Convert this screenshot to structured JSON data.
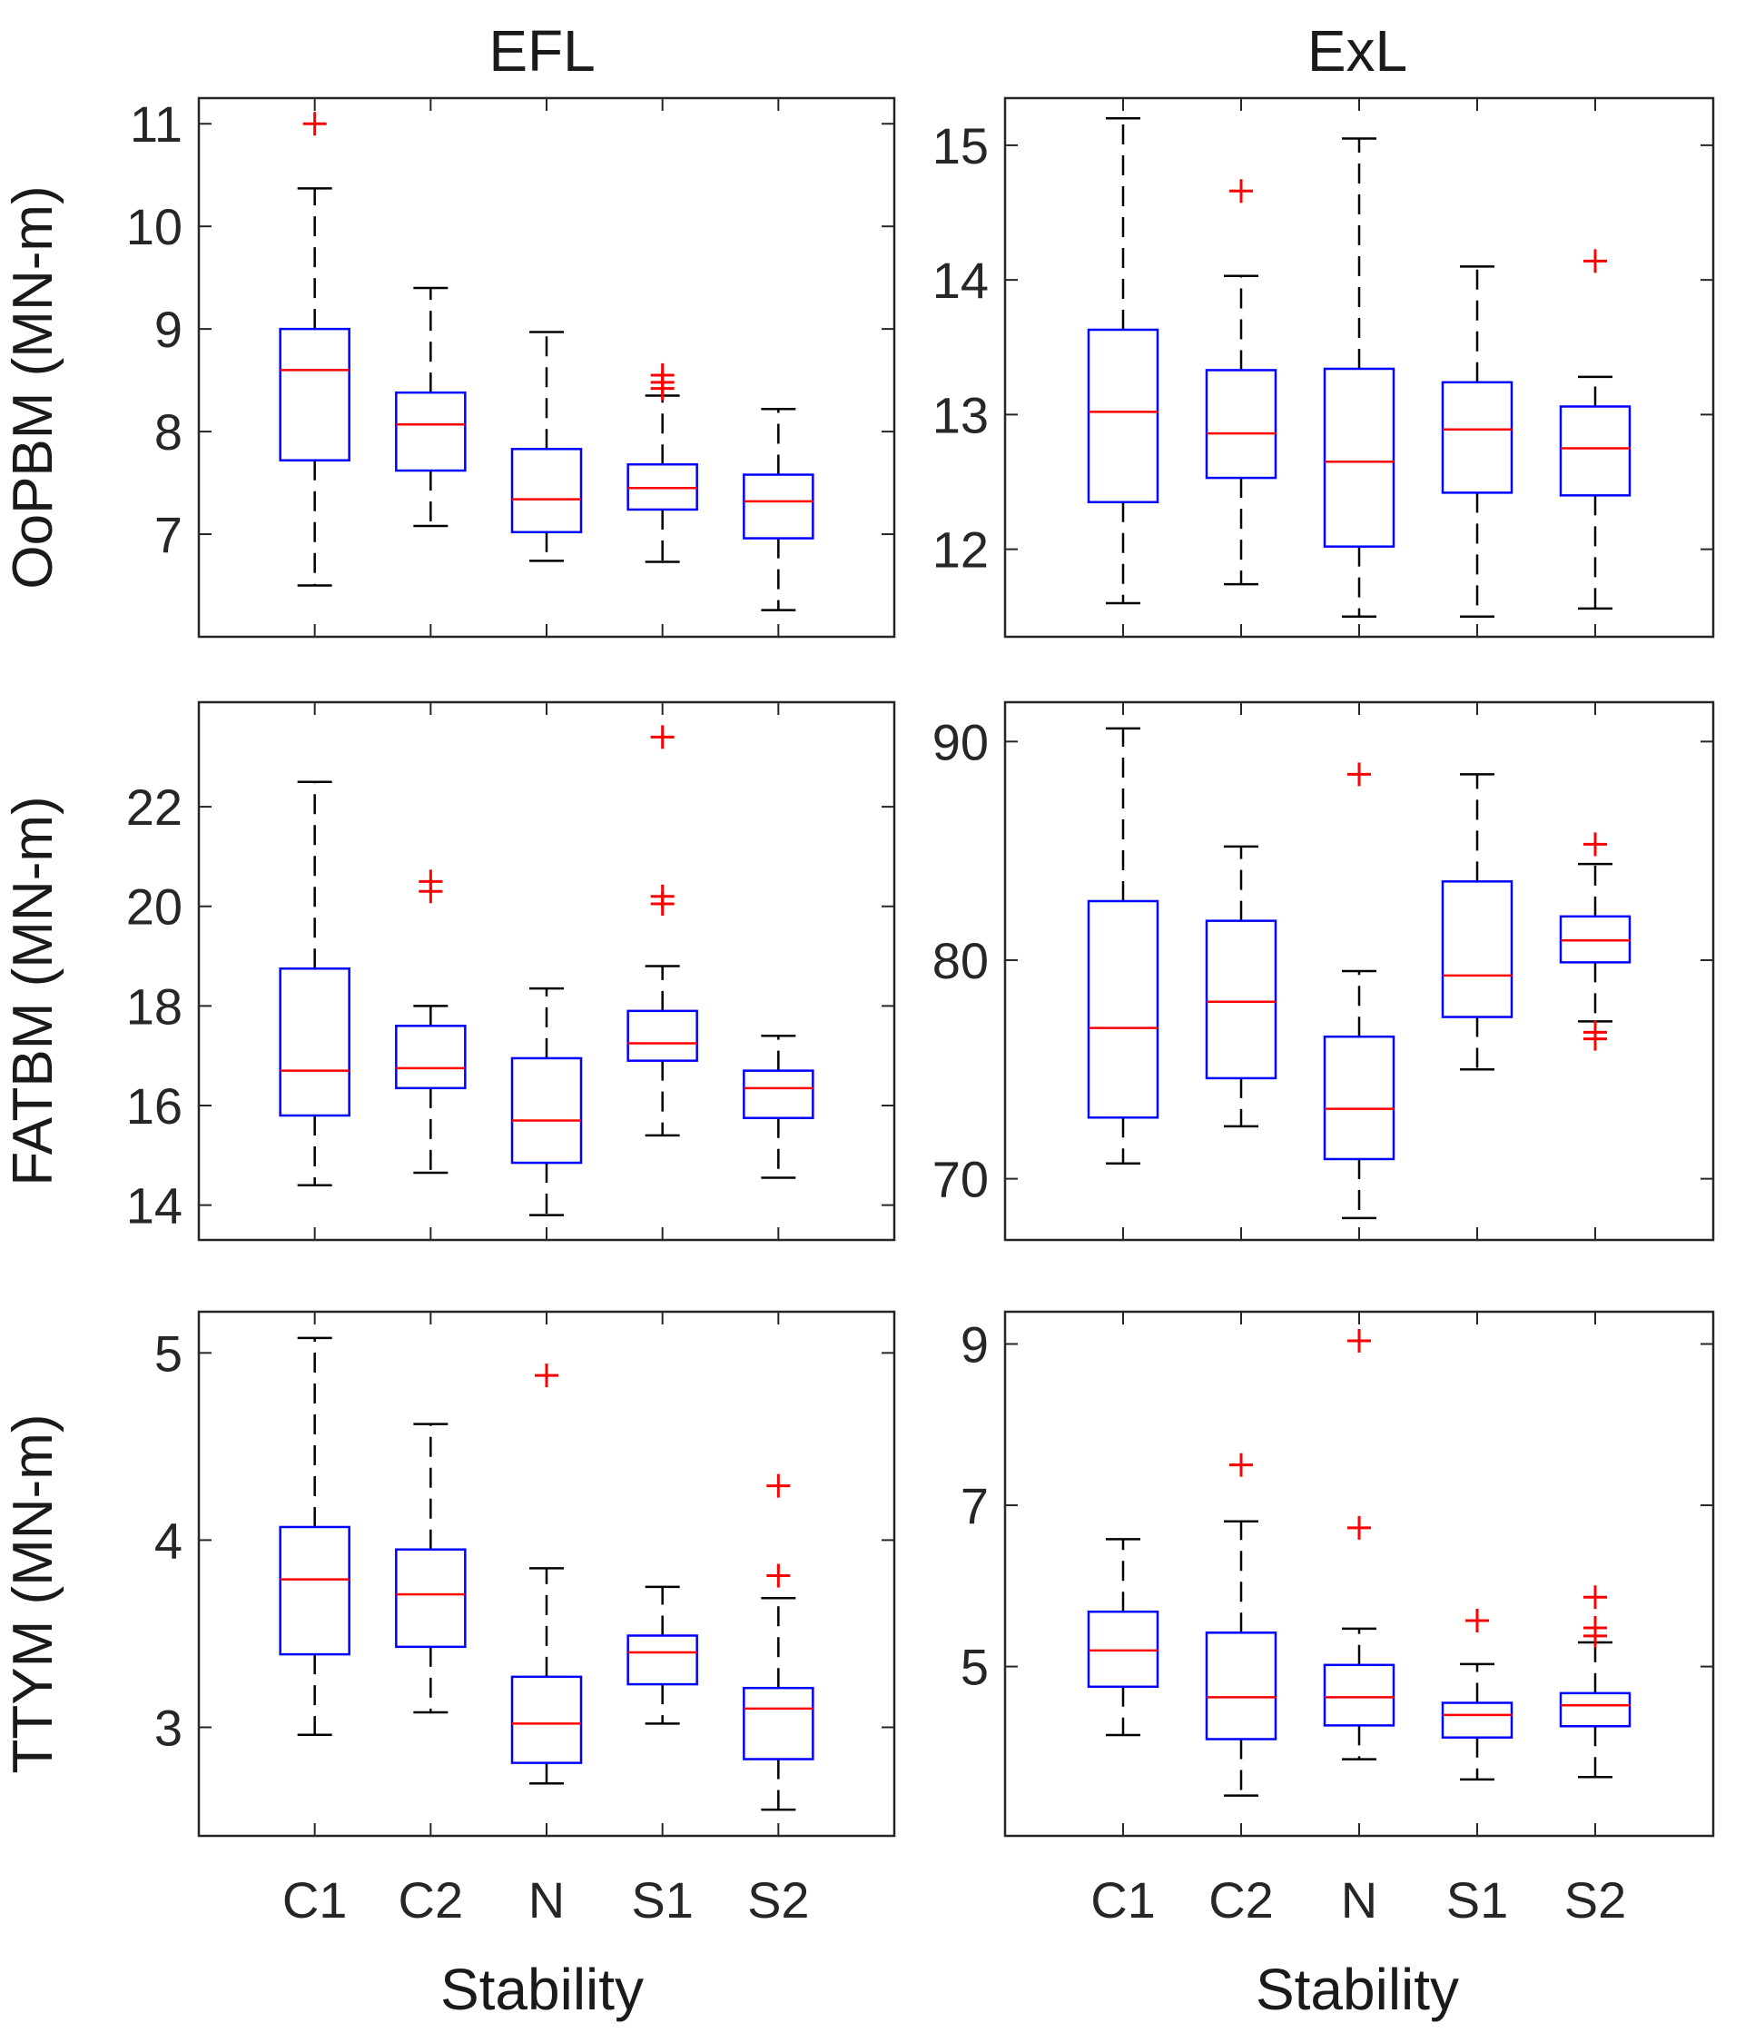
{
  "columns": [
    "EFL",
    "ExL"
  ],
  "x_label": "Stability",
  "categories": [
    "C1",
    "C2",
    "N",
    "S1",
    "S2"
  ],
  "chart_data": [
    {
      "type": "box",
      "row": 0,
      "col": 0,
      "column_title": "EFL",
      "ylabel": "OoPBM (MN-m)",
      "ylim": [
        6.0,
        11.25
      ],
      "yticks": [
        7,
        8,
        9,
        10,
        11
      ],
      "boxes": [
        {
          "category": "C1",
          "whislo": 6.5,
          "q1": 7.72,
          "med": 8.6,
          "q3": 9.0,
          "whishi": 10.37,
          "fliers": [
            11.0
          ]
        },
        {
          "category": "C2",
          "whislo": 7.08,
          "q1": 7.62,
          "med": 8.07,
          "q3": 8.38,
          "whishi": 9.4,
          "fliers": []
        },
        {
          "category": "N",
          "whislo": 6.74,
          "q1": 7.02,
          "med": 7.34,
          "q3": 7.83,
          "whishi": 8.97,
          "fliers": []
        },
        {
          "category": "S1",
          "whislo": 6.73,
          "q1": 7.24,
          "med": 7.45,
          "q3": 7.68,
          "whishi": 8.35,
          "fliers": [
            8.42,
            8.48,
            8.55
          ]
        },
        {
          "category": "S2",
          "whislo": 6.26,
          "q1": 6.96,
          "med": 7.32,
          "q3": 7.58,
          "whishi": 8.22,
          "fliers": []
        }
      ]
    },
    {
      "type": "box",
      "row": 0,
      "col": 1,
      "column_title": "ExL",
      "ylabel": "",
      "ylim": [
        11.35,
        15.35
      ],
      "yticks": [
        12,
        13,
        14,
        15
      ],
      "boxes": [
        {
          "category": "C1",
          "whislo": 11.6,
          "q1": 12.35,
          "med": 13.02,
          "q3": 13.63,
          "whishi": 15.2,
          "fliers": []
        },
        {
          "category": "C2",
          "whislo": 11.74,
          "q1": 12.53,
          "med": 12.86,
          "q3": 13.33,
          "whishi": 14.03,
          "fliers": [
            14.66
          ]
        },
        {
          "category": "N",
          "whislo": 11.5,
          "q1": 12.02,
          "med": 12.65,
          "q3": 13.34,
          "whishi": 15.05,
          "fliers": []
        },
        {
          "category": "S1",
          "whislo": 11.5,
          "q1": 12.42,
          "med": 12.89,
          "q3": 13.24,
          "whishi": 14.1,
          "fliers": []
        },
        {
          "category": "S2",
          "whislo": 11.56,
          "q1": 12.4,
          "med": 12.75,
          "q3": 13.06,
          "whishi": 13.28,
          "fliers": [
            14.14
          ]
        }
      ]
    },
    {
      "type": "box",
      "row": 1,
      "col": 0,
      "column_title": "EFL",
      "ylabel": "FATBM (MN-m)",
      "ylim": [
        13.3,
        24.1
      ],
      "yticks": [
        14,
        16,
        18,
        20,
        22
      ],
      "boxes": [
        {
          "category": "C1",
          "whislo": 14.4,
          "q1": 15.8,
          "med": 16.7,
          "q3": 18.75,
          "whishi": 22.5,
          "fliers": []
        },
        {
          "category": "C2",
          "whislo": 14.65,
          "q1": 16.35,
          "med": 16.75,
          "q3": 17.6,
          "whishi": 18.0,
          "fliers": [
            20.3,
            20.5
          ]
        },
        {
          "category": "N",
          "whislo": 13.8,
          "q1": 14.85,
          "med": 15.7,
          "q3": 16.95,
          "whishi": 18.35,
          "fliers": []
        },
        {
          "category": "S1",
          "whislo": 15.4,
          "q1": 16.9,
          "med": 17.25,
          "q3": 17.9,
          "whishi": 18.8,
          "fliers": [
            20.05,
            20.2,
            23.4
          ]
        },
        {
          "category": "S2",
          "whislo": 14.55,
          "q1": 15.75,
          "med": 16.35,
          "q3": 16.7,
          "whishi": 17.4,
          "fliers": []
        }
      ]
    },
    {
      "type": "box",
      "row": 1,
      "col": 1,
      "column_title": "ExL",
      "ylabel": "",
      "ylim": [
        67.2,
        91.8
      ],
      "yticks": [
        70,
        80,
        90
      ],
      "boxes": [
        {
          "category": "C1",
          "whislo": 70.7,
          "q1": 72.8,
          "med": 76.9,
          "q3": 82.7,
          "whishi": 90.6,
          "fliers": []
        },
        {
          "category": "C2",
          "whislo": 72.4,
          "q1": 74.6,
          "med": 78.1,
          "q3": 81.8,
          "whishi": 85.2,
          "fliers": []
        },
        {
          "category": "N",
          "whislo": 68.2,
          "q1": 70.9,
          "med": 73.2,
          "q3": 76.5,
          "whishi": 79.5,
          "fliers": [
            88.5
          ]
        },
        {
          "category": "S1",
          "whislo": 75.0,
          "q1": 77.4,
          "med": 79.3,
          "q3": 83.6,
          "whishi": 88.5,
          "fliers": []
        },
        {
          "category": "S2",
          "whislo": 77.2,
          "q1": 79.9,
          "med": 80.9,
          "q3": 82.0,
          "whishi": 84.4,
          "fliers": [
            85.3,
            76.7,
            76.4
          ]
        }
      ]
    },
    {
      "type": "box",
      "row": 2,
      "col": 0,
      "column_title": "EFL",
      "ylabel": "TTYM (MN-m)",
      "ylim": [
        2.42,
        5.22
      ],
      "yticks": [
        3,
        4,
        5
      ],
      "boxes": [
        {
          "category": "C1",
          "whislo": 2.96,
          "q1": 3.39,
          "med": 3.79,
          "q3": 4.07,
          "whishi": 5.08,
          "fliers": []
        },
        {
          "category": "C2",
          "whislo": 3.08,
          "q1": 3.43,
          "med": 3.71,
          "q3": 3.95,
          "whishi": 4.62,
          "fliers": []
        },
        {
          "category": "N",
          "whislo": 2.7,
          "q1": 2.81,
          "med": 3.02,
          "q3": 3.27,
          "whishi": 3.85,
          "fliers": [
            4.88
          ]
        },
        {
          "category": "S1",
          "whislo": 3.02,
          "q1": 3.23,
          "med": 3.4,
          "q3": 3.49,
          "whishi": 3.75,
          "fliers": []
        },
        {
          "category": "S2",
          "whislo": 2.56,
          "q1": 2.83,
          "med": 3.1,
          "q3": 3.21,
          "whishi": 3.69,
          "fliers": [
            3.81,
            4.29
          ]
        }
      ]
    },
    {
      "type": "box",
      "row": 2,
      "col": 1,
      "column_title": "ExL",
      "ylabel": "",
      "ylim": [
        2.9,
        9.4
      ],
      "yticks": [
        5,
        7,
        9
      ],
      "boxes": [
        {
          "category": "C1",
          "whislo": 4.15,
          "q1": 4.75,
          "med": 5.2,
          "q3": 5.68,
          "whishi": 6.58,
          "fliers": []
        },
        {
          "category": "C2",
          "whislo": 3.4,
          "q1": 4.1,
          "med": 4.62,
          "q3": 5.42,
          "whishi": 6.8,
          "fliers": [
            7.5
          ]
        },
        {
          "category": "N",
          "whislo": 3.85,
          "q1": 4.27,
          "med": 4.62,
          "q3": 5.02,
          "whishi": 5.47,
          "fliers": [
            6.72,
            9.04
          ]
        },
        {
          "category": "S1",
          "whislo": 3.6,
          "q1": 4.12,
          "med": 4.4,
          "q3": 4.55,
          "whishi": 5.03,
          "fliers": [
            5.57
          ]
        },
        {
          "category": "S2",
          "whislo": 3.63,
          "q1": 4.26,
          "med": 4.52,
          "q3": 4.67,
          "whishi": 5.3,
          "fliers": [
            5.38,
            5.48,
            5.86
          ]
        }
      ]
    }
  ]
}
